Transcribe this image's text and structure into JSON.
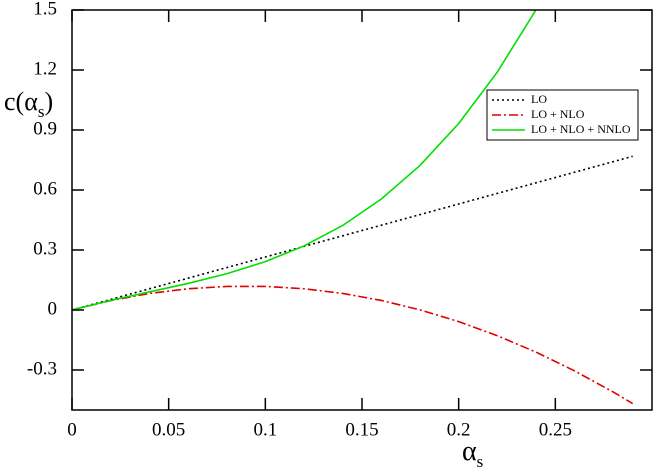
{
  "chart_data": {
    "type": "line",
    "ylabel": [
      "c(α",
      "s",
      ")"
    ],
    "xlabel": [
      "α",
      "s"
    ],
    "x": [
      0,
      0.02,
      0.04,
      0.06,
      0.08,
      0.1,
      0.12,
      0.14,
      0.16,
      0.18,
      0.2,
      0.22,
      0.24,
      0.26,
      0.28,
      0.29
    ],
    "series": [
      {
        "name": "LO",
        "color": "#000000",
        "linestyle": "dotted",
        "values": [
          0,
          0.053,
          0.106,
          0.159,
          0.212,
          0.265,
          0.318,
          0.371,
          0.424,
          0.477,
          0.53,
          0.583,
          0.636,
          0.689,
          0.742,
          0.7685
        ]
      },
      {
        "name": "LO + NLO",
        "color": "#e00000",
        "linestyle": "dashdot",
        "values": [
          0,
          0.0471,
          0.0825,
          0.1061,
          0.1179,
          0.118,
          0.1063,
          0.0829,
          0.0477,
          0.0007,
          -0.058,
          -0.1285,
          -0.2107,
          -0.3047,
          -0.4105,
          -0.4678
        ]
      },
      {
        "name": "LO + NLO + NNLO",
        "color": "#00e000",
        "linestyle": "solid",
        "values": [
          0,
          0.0481,
          0.0904,
          0.1328,
          0.1813,
          0.2418,
          0.3202,
          0.4226,
          0.5548,
          0.7227,
          0.9324,
          1.1897,
          1.5007,
          null,
          null,
          null
        ]
      }
    ],
    "xlim": [
      0,
      0.3
    ],
    "ylim": [
      -0.5,
      1.5
    ],
    "xticks": [
      0,
      0.05,
      0.1,
      0.15,
      0.2,
      0.25
    ],
    "yticks": [
      -0.3,
      0,
      0.3,
      0.6,
      0.9,
      1.2,
      1.5
    ],
    "legend": "upper right"
  }
}
